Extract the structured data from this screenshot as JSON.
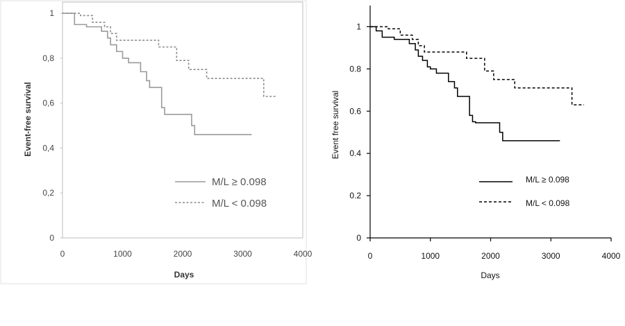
{
  "chart_data": [
    {
      "type": "line",
      "step": true,
      "title": "",
      "xlabel": "Days",
      "ylabel": "Event-free survival",
      "xlim": [
        0,
        4000
      ],
      "ylim": [
        0,
        1.05
      ],
      "x_ticks": [
        "0",
        "1000",
        "2000",
        "3000",
        "4000"
      ],
      "y_ticks": [
        "0",
        "0,2",
        "0,4",
        "0,6",
        "0,8",
        "1"
      ],
      "y_tick_values": [
        0,
        0.2,
        0.4,
        0.6,
        0.8,
        1
      ],
      "x_tick_values": [
        0,
        1000,
        2000,
        3000,
        4000
      ],
      "legend_position": "lower-right",
      "grid": false,
      "series": [
        {
          "name": "M/L ≥ 0.098",
          "line_style": "solid",
          "color": "#9a9a9a",
          "x": [
            0,
            200,
            400,
            650,
            750,
            800,
            900,
            1000,
            1100,
            1300,
            1400,
            1450,
            1650,
            1700,
            1750,
            2150,
            2200,
            3150
          ],
          "y": [
            1.0,
            0.95,
            0.94,
            0.92,
            0.89,
            0.86,
            0.83,
            0.8,
            0.78,
            0.74,
            0.7,
            0.67,
            0.58,
            0.55,
            0.55,
            0.5,
            0.46,
            0.46
          ]
        },
        {
          "name": "M/L < 0.098",
          "line_style": "dashed",
          "color": "#8c8c8c",
          "x": [
            0,
            300,
            500,
            700,
            800,
            900,
            1600,
            1900,
            2100,
            2400,
            3350,
            3550
          ],
          "y": [
            1.0,
            0.99,
            0.96,
            0.94,
            0.91,
            0.88,
            0.85,
            0.79,
            0.75,
            0.71,
            0.63,
            0.63
          ]
        }
      ]
    },
    {
      "type": "line",
      "step": true,
      "title": "",
      "xlabel": "Days",
      "ylabel": "Event free survival",
      "xlim": [
        0,
        4000
      ],
      "ylim": [
        0,
        1.1
      ],
      "x_ticks": [
        "0",
        "1000",
        "2000",
        "3000",
        "4000"
      ],
      "y_ticks": [
        "0",
        "0.2",
        "0.4",
        "0.6",
        "0.8",
        "1"
      ],
      "y_tick_values": [
        0,
        0.2,
        0.4,
        0.6,
        0.8,
        1
      ],
      "x_tick_values": [
        0,
        1000,
        2000,
        3000,
        4000
      ],
      "legend_position": "lower-right",
      "grid": false,
      "series": [
        {
          "name": "M/L ≥ 0.098",
          "line_style": "solid",
          "color": "#000000",
          "x": [
            0,
            100,
            200,
            400,
            650,
            750,
            800,
            870,
            950,
            1000,
            1100,
            1300,
            1400,
            1450,
            1650,
            1700,
            1750,
            2150,
            2200,
            3150
          ],
          "y": [
            1.0,
            0.98,
            0.95,
            0.94,
            0.92,
            0.89,
            0.86,
            0.84,
            0.81,
            0.8,
            0.78,
            0.74,
            0.71,
            0.67,
            0.58,
            0.55,
            0.545,
            0.5,
            0.46,
            0.46
          ]
        },
        {
          "name": "M/L < 0.098",
          "line_style": "dashed",
          "color": "#000000",
          "x": [
            0,
            300,
            500,
            700,
            800,
            900,
            1600,
            1900,
            2050,
            2400,
            3350,
            3550
          ],
          "y": [
            1.0,
            0.99,
            0.96,
            0.94,
            0.91,
            0.88,
            0.85,
            0.79,
            0.75,
            0.71,
            0.63,
            0.63
          ]
        }
      ]
    }
  ]
}
